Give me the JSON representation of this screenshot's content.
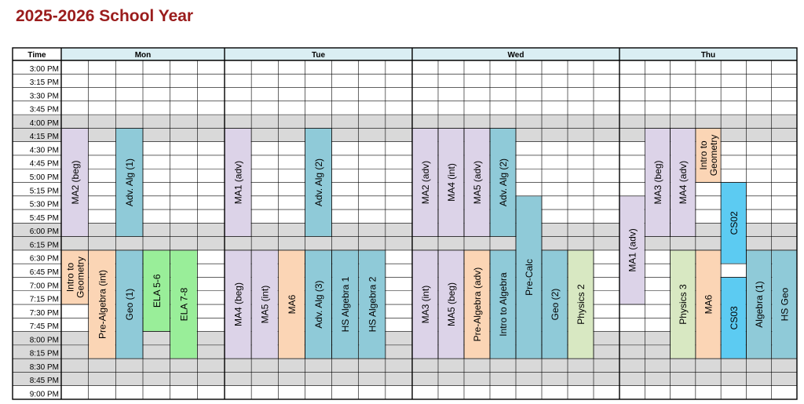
{
  "title": "2025-2026 School Year",
  "header": {
    "time_label": "Time"
  },
  "days": [
    {
      "name": "Mon",
      "cols": 6
    },
    {
      "name": "Tue",
      "cols": 7
    },
    {
      "name": "Wed",
      "cols": 8
    },
    {
      "name": "Thu",
      "cols": 7
    }
  ],
  "times": [
    "3:00 PM",
    "3:15 PM",
    "3:30 PM",
    "3:45 PM",
    "4:00 PM",
    "4:15 PM",
    "4:30 PM",
    "4:45 PM",
    "5:00 PM",
    "5:15 PM",
    "5:30 PM",
    "5:45 PM",
    "6:00 PM",
    "6:15 PM",
    "6:30 PM",
    "6:45 PM",
    "7:00 PM",
    "7:15 PM",
    "7:30 PM",
    "7:45 PM",
    "8:00 PM",
    "8:15 PM",
    "8:30 PM",
    "8:45 PM",
    "9:00 PM"
  ],
  "shaded_rows": [
    4,
    5,
    12,
    13,
    20,
    21,
    22,
    23
  ],
  "colors": {
    "purple": "#dcd3e8",
    "blue": "#8fcad8",
    "orange": "#fbd5b5",
    "green": "#99ee99",
    "cyan": "#5ccbf2",
    "olive": "#d8e8c2",
    "header_fill": "#daeef3",
    "shade": "#d9d9d9",
    "title": "#9a1c1c"
  },
  "events": [
    {
      "label": "MA2 (beg)",
      "day": 0,
      "col": 0,
      "start": 5,
      "end": 13,
      "color": "purple"
    },
    {
      "label": "Adv. Alg (1)",
      "day": 0,
      "col": 2,
      "start": 5,
      "end": 13,
      "color": "blue"
    },
    {
      "label": "Intro to Geometry",
      "day": 0,
      "col": 0,
      "start": 14,
      "end": 18,
      "color": "orange",
      "lines": [
        "Intro to",
        "Geometry"
      ]
    },
    {
      "label": "Pre-Algebra (int)",
      "day": 0,
      "col": 1,
      "start": 14,
      "end": 22,
      "color": "orange"
    },
    {
      "label": "Geo (1)",
      "day": 0,
      "col": 2,
      "start": 14,
      "end": 22,
      "color": "blue"
    },
    {
      "label": "ELA 5-6",
      "day": 0,
      "col": 3,
      "start": 14,
      "end": 20,
      "color": "green"
    },
    {
      "label": "ELA 7-8",
      "day": 0,
      "col": 4,
      "start": 14,
      "end": 22,
      "color": "green"
    },
    {
      "label": "MA1 (adv)",
      "day": 1,
      "col": 0,
      "start": 5,
      "end": 13,
      "color": "purple"
    },
    {
      "label": "Adv. Alg (2)",
      "day": 1,
      "col": 3,
      "start": 5,
      "end": 13,
      "color": "blue"
    },
    {
      "label": "MA4 (beg)",
      "day": 1,
      "col": 0,
      "start": 14,
      "end": 22,
      "color": "purple"
    },
    {
      "label": "MA5 (int)",
      "day": 1,
      "col": 1,
      "start": 14,
      "end": 22,
      "color": "purple"
    },
    {
      "label": "MA6",
      "day": 1,
      "col": 2,
      "start": 14,
      "end": 22,
      "color": "orange"
    },
    {
      "label": "Adv. Alg (3)",
      "day": 1,
      "col": 3,
      "start": 14,
      "end": 22,
      "color": "blue"
    },
    {
      "label": "HS Algebra 1",
      "day": 1,
      "col": 4,
      "start": 14,
      "end": 22,
      "color": "blue"
    },
    {
      "label": "HS Algebra 2",
      "day": 1,
      "col": 5,
      "start": 14,
      "end": 22,
      "color": "blue"
    },
    {
      "label": "MA2 (adv)",
      "day": 2,
      "col": 0,
      "start": 5,
      "end": 13,
      "color": "purple"
    },
    {
      "label": "MA4 (int)",
      "day": 2,
      "col": 1,
      "start": 5,
      "end": 13,
      "color": "purple"
    },
    {
      "label": "MA5 (adv)",
      "day": 2,
      "col": 2,
      "start": 5,
      "end": 13,
      "color": "purple"
    },
    {
      "label": "Adv. Alg (2)",
      "day": 2,
      "col": 3,
      "start": 5,
      "end": 13,
      "color": "blue"
    },
    {
      "label": "Pre-Calc",
      "day": 2,
      "col": 4,
      "start": 10,
      "end": 22,
      "color": "blue"
    },
    {
      "label": "MA3 (int)",
      "day": 2,
      "col": 0,
      "start": 14,
      "end": 22,
      "color": "purple"
    },
    {
      "label": "MA5 (beg)",
      "day": 2,
      "col": 1,
      "start": 14,
      "end": 22,
      "color": "purple"
    },
    {
      "label": "Pre-Algebra (adv)",
      "day": 2,
      "col": 2,
      "start": 14,
      "end": 22,
      "color": "orange"
    },
    {
      "label": "Intro to Algebra",
      "day": 2,
      "col": 3,
      "start": 14,
      "end": 22,
      "color": "blue"
    },
    {
      "label": "Geo (2)",
      "day": 2,
      "col": 5,
      "start": 14,
      "end": 22,
      "color": "blue"
    },
    {
      "label": "Physics 2",
      "day": 2,
      "col": 6,
      "start": 14,
      "end": 22,
      "color": "olive"
    },
    {
      "label": "MA3 (beg)",
      "day": 3,
      "col": 1,
      "start": 5,
      "end": 13,
      "color": "purple"
    },
    {
      "label": "MA4 (adv)",
      "day": 3,
      "col": 2,
      "start": 5,
      "end": 13,
      "color": "purple"
    },
    {
      "label": "Intro to Geometry",
      "day": 3,
      "col": 3,
      "start": 5,
      "end": 9,
      "color": "orange",
      "lines": [
        "Intro to",
        "Geometry"
      ]
    },
    {
      "label": "CS02",
      "day": 3,
      "col": 4,
      "start": 9,
      "end": 15,
      "color": "cyan"
    },
    {
      "label": "MA1 (adv)",
      "day": 3,
      "col": 0,
      "start": 10,
      "end": 18,
      "color": "purple"
    },
    {
      "label": "Physics 3",
      "day": 3,
      "col": 2,
      "start": 14,
      "end": 22,
      "color": "olive"
    },
    {
      "label": "MA6",
      "day": 3,
      "col": 3,
      "start": 14,
      "end": 22,
      "color": "orange"
    },
    {
      "label": "CS03",
      "day": 3,
      "col": 4,
      "start": 16,
      "end": 22,
      "color": "cyan"
    },
    {
      "label": "Algebra (1)",
      "day": 3,
      "col": 5,
      "start": 14,
      "end": 22,
      "color": "blue"
    },
    {
      "label": "HS Geo",
      "day": 3,
      "col": 6,
      "start": 14,
      "end": 22,
      "color": "blue"
    }
  ]
}
